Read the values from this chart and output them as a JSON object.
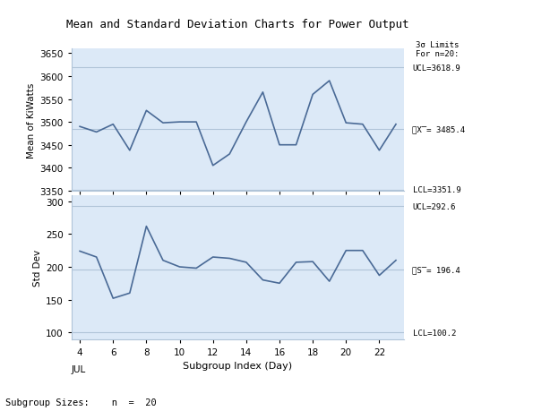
{
  "title": "Mean and Standard Deviation Charts for Power Output",
  "x_days": [
    4,
    5,
    6,
    7,
    8,
    9,
    10,
    11,
    12,
    13,
    14,
    15,
    16,
    17,
    18,
    19,
    20,
    21,
    22,
    23
  ],
  "xbar_values": [
    3490,
    3478,
    3495,
    3438,
    3525,
    3498,
    3500,
    3500,
    3405,
    3430,
    3500,
    3565,
    3450,
    3450,
    3560,
    3590,
    3498,
    3495,
    3438,
    3495
  ],
  "s_values": [
    224,
    215,
    152,
    160,
    262,
    210,
    200,
    198,
    215,
    213,
    207,
    180,
    175,
    207,
    208,
    178,
    225,
    225,
    187,
    210
  ],
  "xbar_mean": 3485.4,
  "xbar_ucl": 3618.9,
  "xbar_lcl": 3351.9,
  "s_mean": 196.4,
  "s_ucl": 292.6,
  "s_lcl": 100.2,
  "xbar_ylim": [
    3350,
    3660
  ],
  "s_ylim": [
    90,
    310
  ],
  "xbar_yticks": [
    3350,
    3400,
    3450,
    3500,
    3550,
    3600,
    3650
  ],
  "s_yticks": [
    100,
    150,
    200,
    250,
    300
  ],
  "xlabel": "Subgroup Index (Day)",
  "xbar_ylabel": "Mean of KiWatts",
  "s_ylabel": "Std Dev",
  "bg_color": "#dce9f7",
  "line_color": "#4a6a96",
  "control_line_color": "#b0c4d8",
  "outer_line_color": "#b0c4d8",
  "subgroup_text": "Subgroup Sizes:    n  =  20",
  "sigma_text": "3σ Limits\nFor n=20:",
  "month_label": "JUL",
  "xbar_label": "̅̅X̅= 3485.4",
  "s_label": "̅S= 196.4"
}
